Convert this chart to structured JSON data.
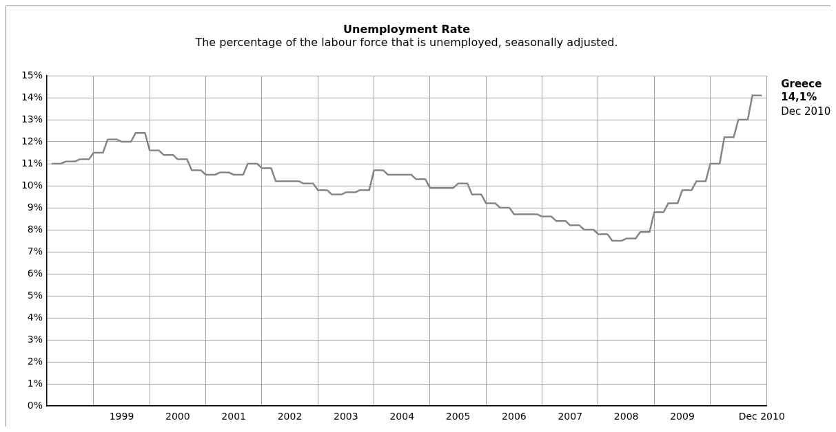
{
  "chart_data": {
    "type": "line",
    "title": "Unemployment Rate",
    "subtitle": "The percentage of the labour force that is unemployed, seasonally adjusted.",
    "x": [
      "1998-04",
      "1998-06",
      "1998-07",
      "1998-09",
      "1998-10",
      "1998-12",
      "1999-01",
      "1999-03",
      "1999-04",
      "1999-06",
      "1999-07",
      "1999-09",
      "1999-10",
      "1999-12",
      "2000-01",
      "2000-03",
      "2000-04",
      "2000-06",
      "2000-07",
      "2000-09",
      "2000-10",
      "2000-12",
      "2001-01",
      "2001-03",
      "2001-04",
      "2001-06",
      "2001-07",
      "2001-09",
      "2001-10",
      "2001-12",
      "2002-01",
      "2002-03",
      "2002-04",
      "2002-06",
      "2002-07",
      "2002-09",
      "2002-10",
      "2002-12",
      "2003-01",
      "2003-03",
      "2003-04",
      "2003-06",
      "2003-07",
      "2003-09",
      "2003-10",
      "2003-12",
      "2004-01",
      "2004-03",
      "2004-04",
      "2004-06",
      "2004-07",
      "2004-09",
      "2004-10",
      "2004-12",
      "2005-01",
      "2005-03",
      "2005-04",
      "2005-06",
      "2005-07",
      "2005-09",
      "2005-10",
      "2005-12",
      "2006-01",
      "2006-03",
      "2006-04",
      "2006-06",
      "2006-07",
      "2006-09",
      "2006-10",
      "2006-12",
      "2007-01",
      "2007-03",
      "2007-04",
      "2007-06",
      "2007-07",
      "2007-09",
      "2007-10",
      "2007-12",
      "2008-01",
      "2008-03",
      "2008-04",
      "2008-06",
      "2008-07",
      "2008-09",
      "2008-10",
      "2008-12",
      "2009-01",
      "2009-03",
      "2009-04",
      "2009-06",
      "2009-07",
      "2009-09",
      "2009-10",
      "2009-12",
      "2010-01",
      "2010-03",
      "2010-04",
      "2010-06",
      "2010-07",
      "2010-09",
      "2010-10",
      "2010-12"
    ],
    "series": [
      {
        "name": "Greece",
        "color": "#858585",
        "values": [
          11.0,
          11.0,
          11.1,
          11.1,
          11.2,
          11.2,
          11.5,
          11.5,
          12.1,
          12.1,
          12.0,
          12.0,
          12.4,
          12.4,
          11.6,
          11.6,
          11.4,
          11.4,
          11.2,
          11.2,
          10.7,
          10.7,
          10.5,
          10.5,
          10.6,
          10.6,
          10.5,
          10.5,
          11.0,
          11.0,
          10.8,
          10.8,
          10.2,
          10.2,
          10.2,
          10.2,
          10.1,
          10.1,
          9.8,
          9.8,
          9.6,
          9.6,
          9.7,
          9.7,
          9.8,
          9.8,
          10.7,
          10.7,
          10.5,
          10.5,
          10.5,
          10.5,
          10.3,
          10.3,
          9.9,
          9.9,
          9.9,
          9.9,
          10.1,
          10.1,
          9.6,
          9.6,
          9.2,
          9.2,
          9.0,
          9.0,
          8.7,
          8.7,
          8.7,
          8.7,
          8.6,
          8.6,
          8.4,
          8.4,
          8.2,
          8.2,
          8.0,
          8.0,
          7.8,
          7.8,
          7.5,
          7.5,
          7.6,
          7.6,
          7.9,
          7.9,
          8.8,
          8.8,
          9.2,
          9.2,
          9.8,
          9.8,
          10.2,
          10.2,
          11.0,
          11.0,
          12.2,
          12.2,
          13.0,
          13.0,
          14.1,
          14.1
        ]
      }
    ],
    "xlim": [
      "1998-03",
      "2011-01"
    ],
    "xticks": [
      {
        "value": "1999-01",
        "label": null
      },
      {
        "value": "1999-07",
        "label": "1999"
      },
      {
        "value": "2000-01",
        "label": null
      },
      {
        "value": "2000-07",
        "label": "2000"
      },
      {
        "value": "2001-01",
        "label": null
      },
      {
        "value": "2001-07",
        "label": "2001"
      },
      {
        "value": "2002-01",
        "label": null
      },
      {
        "value": "2002-07",
        "label": "2002"
      },
      {
        "value": "2003-01",
        "label": null
      },
      {
        "value": "2003-07",
        "label": "2003"
      },
      {
        "value": "2004-01",
        "label": null
      },
      {
        "value": "2004-07",
        "label": "2004"
      },
      {
        "value": "2005-01",
        "label": null
      },
      {
        "value": "2005-07",
        "label": "2005"
      },
      {
        "value": "2006-01",
        "label": null
      },
      {
        "value": "2006-07",
        "label": "2006"
      },
      {
        "value": "2007-01",
        "label": null
      },
      {
        "value": "2007-07",
        "label": "2007"
      },
      {
        "value": "2008-01",
        "label": null
      },
      {
        "value": "2008-07",
        "label": "2008"
      },
      {
        "value": "2009-01",
        "label": null
      },
      {
        "value": "2009-07",
        "label": "2009"
      },
      {
        "value": "2010-01",
        "label": null
      },
      {
        "value": "2010-12",
        "label": "Dec 2010"
      },
      {
        "value": "2011-01",
        "label": null
      }
    ],
    "ylim": [
      0,
      15
    ],
    "yticks": [
      {
        "value": 0,
        "label": "0%"
      },
      {
        "value": 1,
        "label": "1%"
      },
      {
        "value": 2,
        "label": "2%"
      },
      {
        "value": 3,
        "label": "3%"
      },
      {
        "value": 4,
        "label": "4%"
      },
      {
        "value": 5,
        "label": "5%"
      },
      {
        "value": 6,
        "label": "6%"
      },
      {
        "value": 7,
        "label": "7%"
      },
      {
        "value": 8,
        "label": "8%"
      },
      {
        "value": 9,
        "label": "9%"
      },
      {
        "value": 10,
        "label": "10%"
      },
      {
        "value": 11,
        "label": "11%"
      },
      {
        "value": 12,
        "label": "12%"
      },
      {
        "value": 13,
        "label": "13%"
      },
      {
        "value": 14,
        "label": "14%"
      },
      {
        "value": 15,
        "label": "15%"
      }
    ],
    "annotations": [
      {
        "text": "14,1%",
        "x": "2010-12",
        "y": 14.1
      },
      {
        "text": "Dec 2010",
        "x": "2010-12",
        "y": 14.1
      }
    ],
    "grid": true,
    "legend": false,
    "marker": "none",
    "line_style": "solid"
  }
}
